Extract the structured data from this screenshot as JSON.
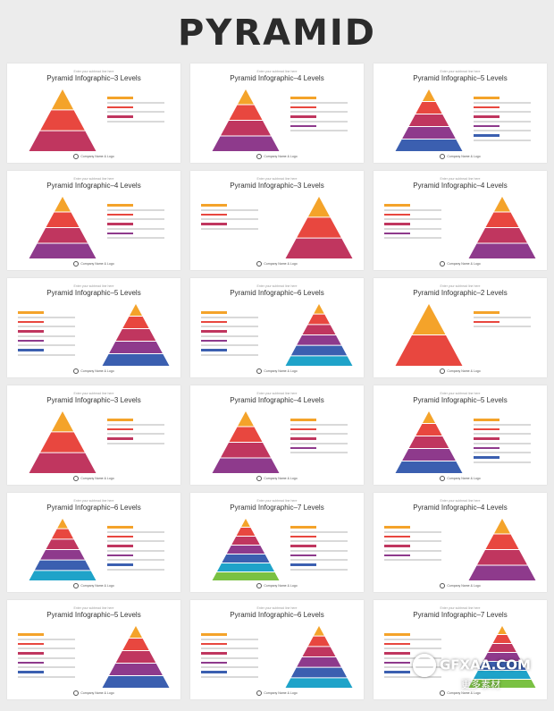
{
  "page_title": "PYRAMID",
  "card_subtitle": "Enter your subhead line here",
  "footer_text": "Company Name & Logo",
  "watermark": "GFXAA.COM",
  "watermark_sub": "更多素材",
  "cards": [
    {
      "title": "Pyramid Infographic–3 Levels"
    },
    {
      "title": "Pyramid Infographic–4 Levels"
    },
    {
      "title": "Pyramid Infographic–5 Levels"
    },
    {
      "title": "Pyramid Infographic–4 Levels"
    },
    {
      "title": "Pyramid Infographic–3 Levels"
    },
    {
      "title": "Pyramid Infographic–4 Levels"
    },
    {
      "title": "Pyramid Infographic–5 Levels"
    },
    {
      "title": "Pyramid Infographic–6 Levels"
    },
    {
      "title": "Pyramid Infographic–2 Levels"
    },
    {
      "title": "Pyramid Infographic–3 Levels"
    },
    {
      "title": "Pyramid Infographic–4 Levels"
    },
    {
      "title": "Pyramid Infographic–5 Levels"
    },
    {
      "title": "Pyramid Infographic–6 Levels"
    },
    {
      "title": "Pyramid Infographic–7 Levels"
    },
    {
      "title": "Pyramid Infographic–4 Levels"
    },
    {
      "title": "Pyramid Infographic–5 Levels"
    },
    {
      "title": "Pyramid Infographic–6 Levels"
    },
    {
      "title": "Pyramid Infographic–7 Levels"
    }
  ],
  "palette": [
    "#f4a32a",
    "#e8473f",
    "#c0365f",
    "#8e3a8c",
    "#3b5fb0",
    "#1fa3c9",
    "#7ac143"
  ]
}
